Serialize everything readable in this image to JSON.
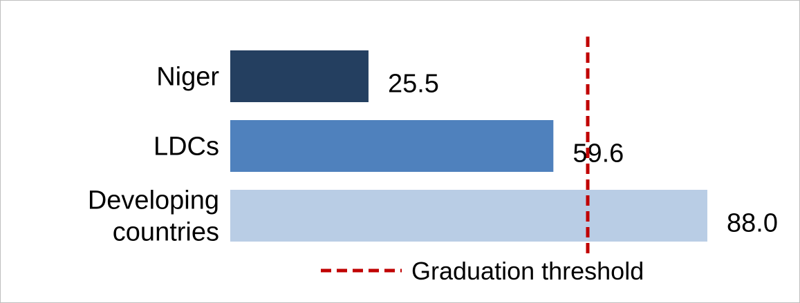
{
  "chart_data": {
    "type": "bar",
    "orientation": "horizontal",
    "categories": [
      "Niger",
      "LDCs",
      "Developing countries"
    ],
    "category_lines": [
      [
        "Niger"
      ],
      [
        "LDCs"
      ],
      [
        "Developing",
        "countries"
      ]
    ],
    "values": [
      25.5,
      59.6,
      88.0
    ],
    "value_labels": [
      "25.5",
      "59.6",
      "88.0"
    ],
    "bar_colors": [
      "#243f60",
      "#4f81bd",
      "#b9cde5"
    ],
    "xlim": [
      0,
      88.0
    ],
    "grid": false,
    "threshold": {
      "value": 66,
      "label": "Graduation threshold",
      "color": "#c00000",
      "style": "dashed"
    },
    "legend": {
      "placement": "bottom-right",
      "entries": [
        {
          "label": "Graduation threshold",
          "color": "#c00000",
          "style": "dashed"
        }
      ]
    }
  }
}
